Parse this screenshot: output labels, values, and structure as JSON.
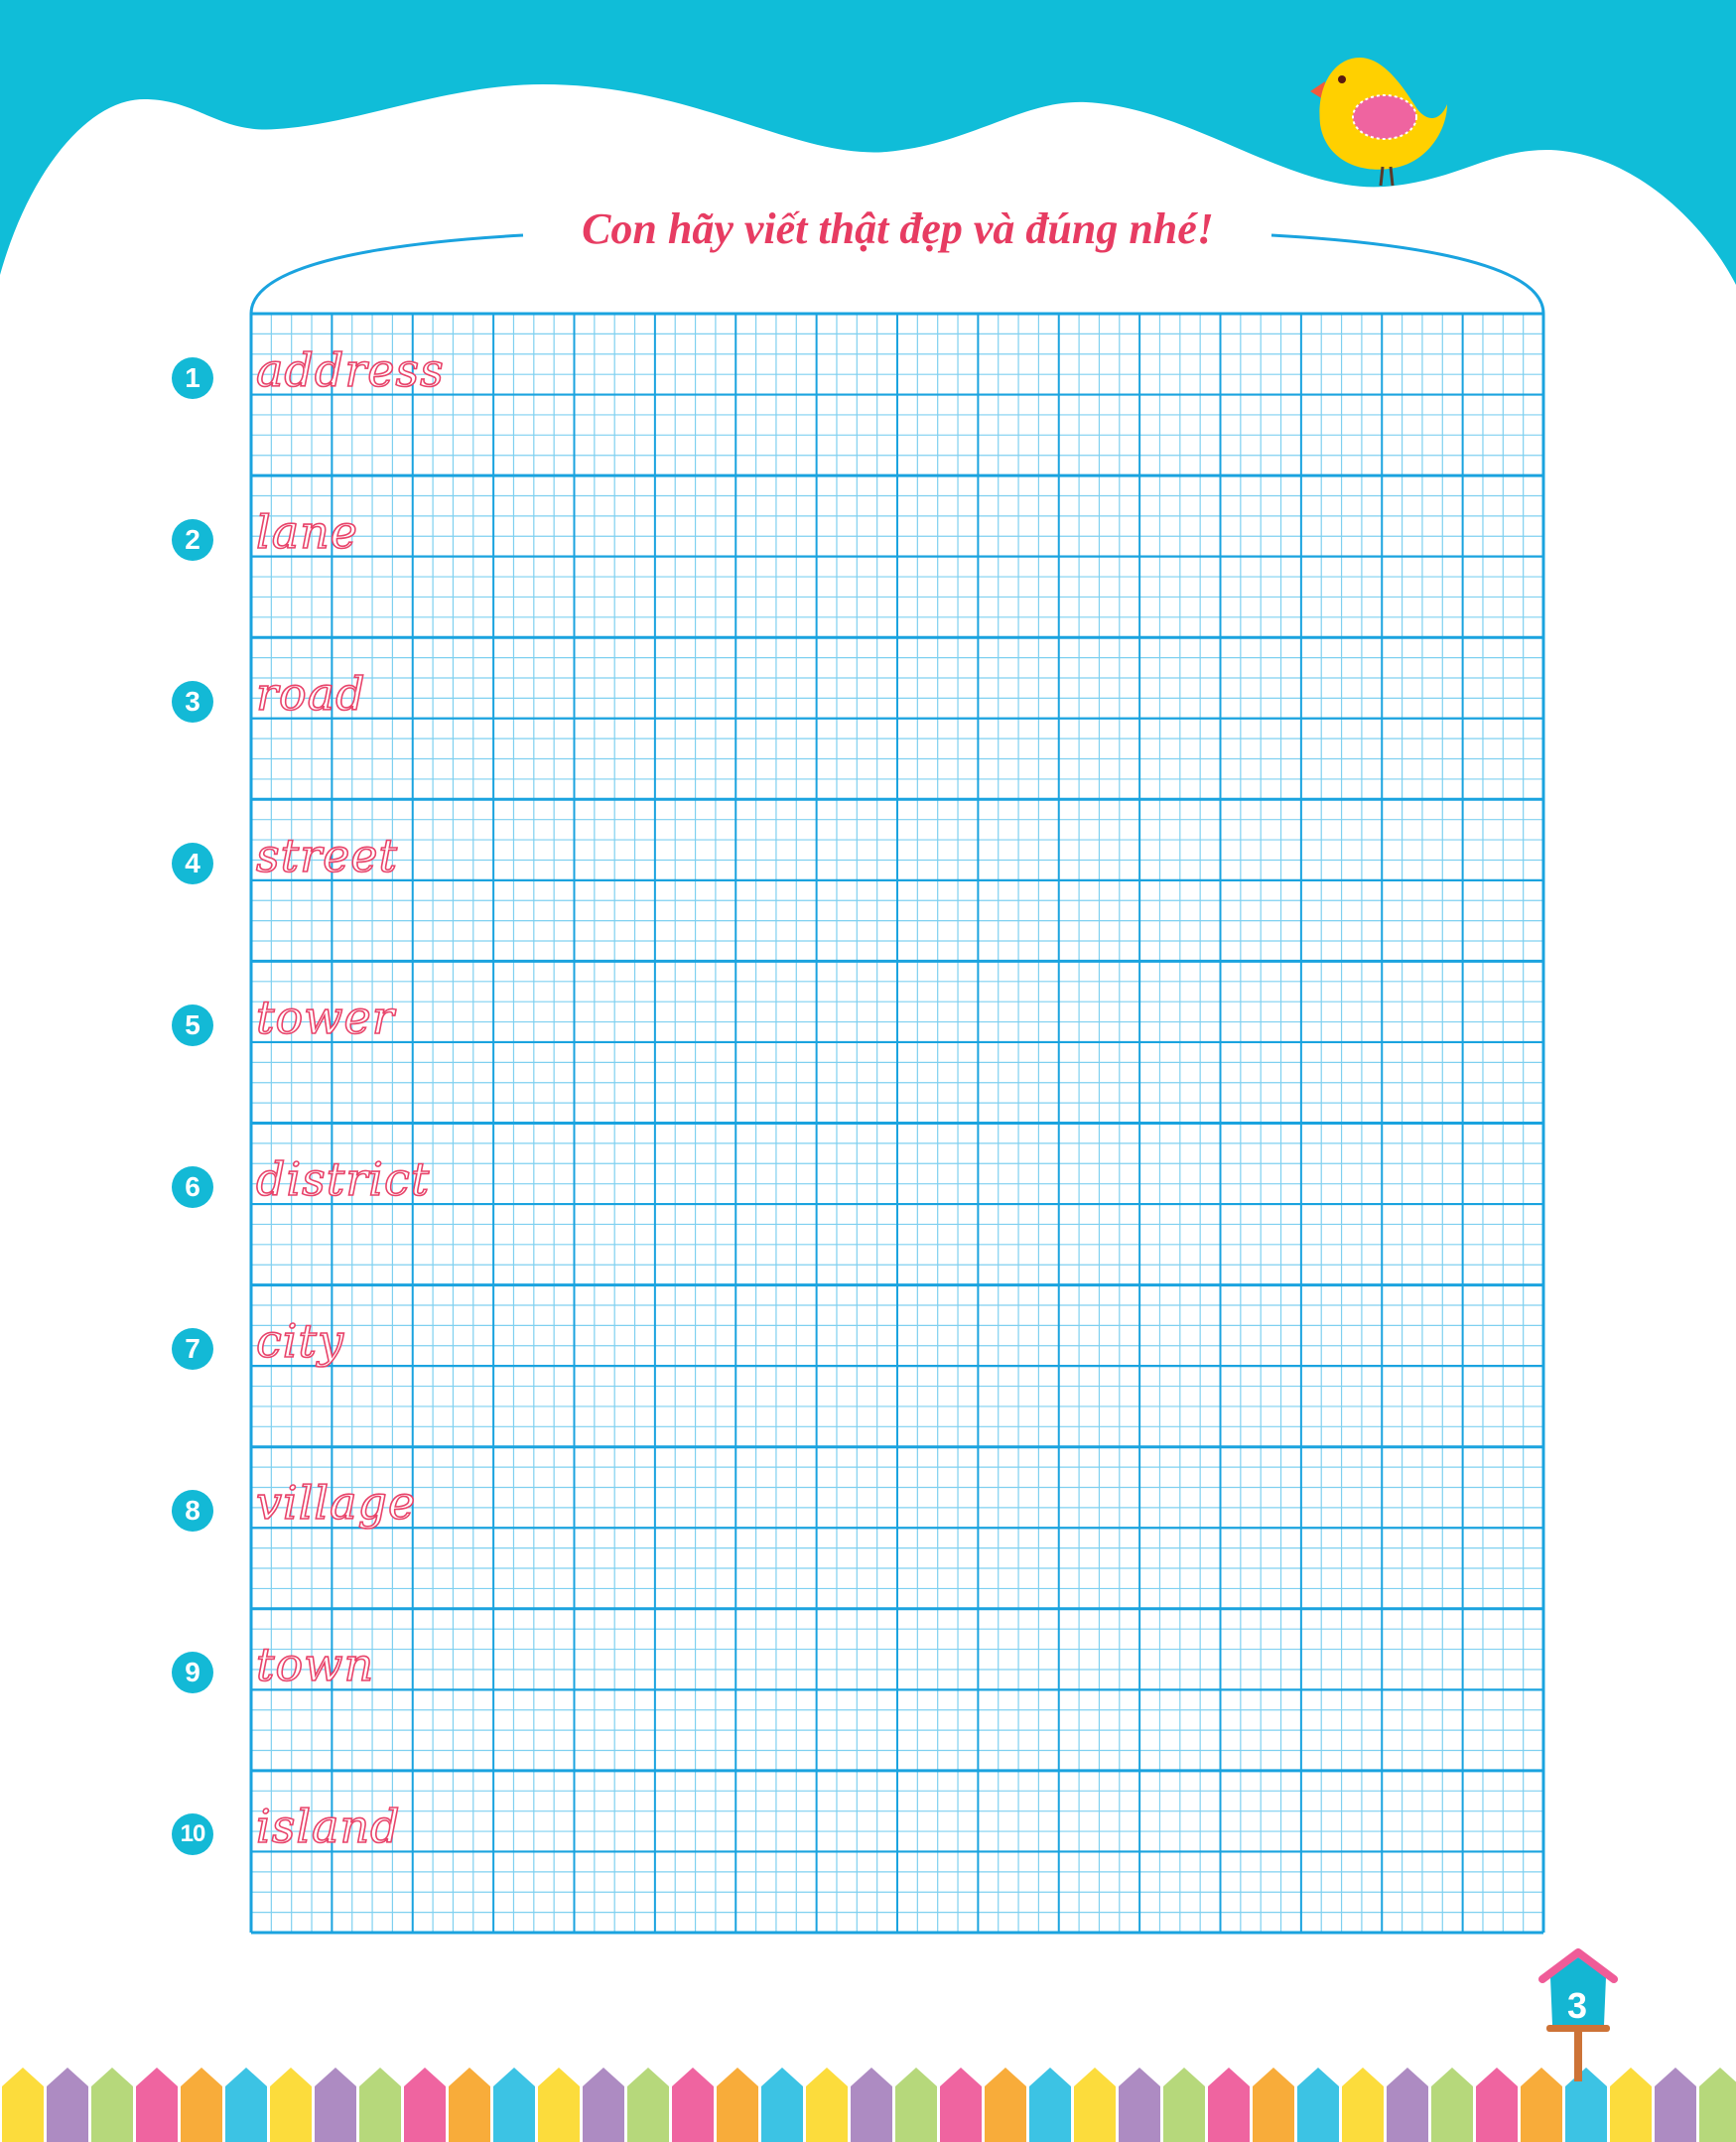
{
  "title": "Con hãy viết thật đẹp và đúng nhé!",
  "colors": {
    "sky": "#10bdd8",
    "grid_major": "#1aa3df",
    "grid_minor": "#7fd0f0",
    "word_pink": "#e8436a",
    "title_pink": "#e73c62",
    "fence": [
      "#fcdc3c",
      "#ad8bc2",
      "#b6d87b",
      "#ef64a0",
      "#f8ac3a",
      "#3cc3e4"
    ]
  },
  "exercises": [
    {
      "number": "1",
      "word": "address"
    },
    {
      "number": "2",
      "word": "lane"
    },
    {
      "number": "3",
      "word": "road"
    },
    {
      "number": "4",
      "word": "street"
    },
    {
      "number": "5",
      "word": "tower"
    },
    {
      "number": "6",
      "word": "district"
    },
    {
      "number": "7",
      "word": "city"
    },
    {
      "number": "8",
      "word": "village"
    },
    {
      "number": "9",
      "word": "town"
    },
    {
      "number": "10",
      "word": "island"
    }
  ],
  "page_number": "3",
  "decorations": [
    "bird-icon",
    "birdhouse-icon",
    "fence-icon"
  ]
}
